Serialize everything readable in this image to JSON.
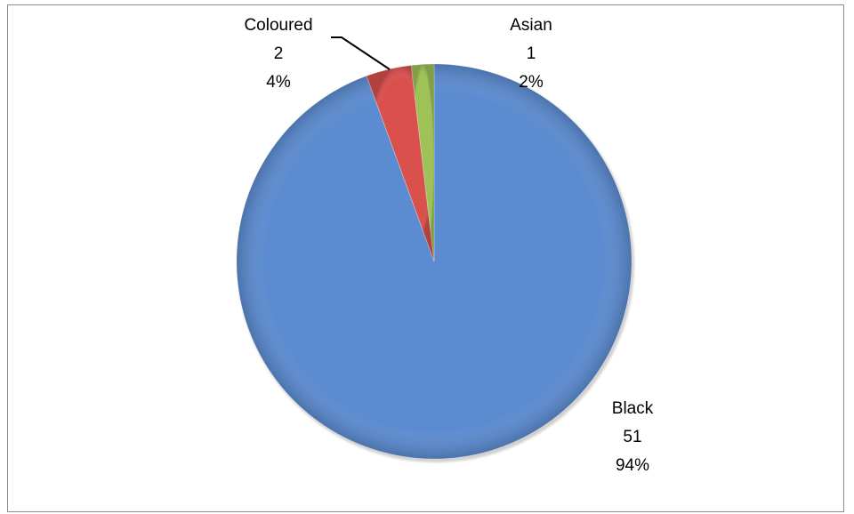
{
  "chart_data": {
    "type": "pie",
    "title": "",
    "categories": [
      "Black",
      "Coloured",
      "Asian"
    ],
    "values": [
      51,
      2,
      1
    ],
    "percentages": [
      "94%",
      "4%",
      "2%"
    ],
    "value_labels": [
      "51",
      "2",
      "1"
    ],
    "colors": {
      "Black": "#5b8bd0",
      "Coloured": "#d9504d",
      "Asian": "#9dc257"
    },
    "data_labels": "category, value, percentage",
    "legend": "none"
  }
}
